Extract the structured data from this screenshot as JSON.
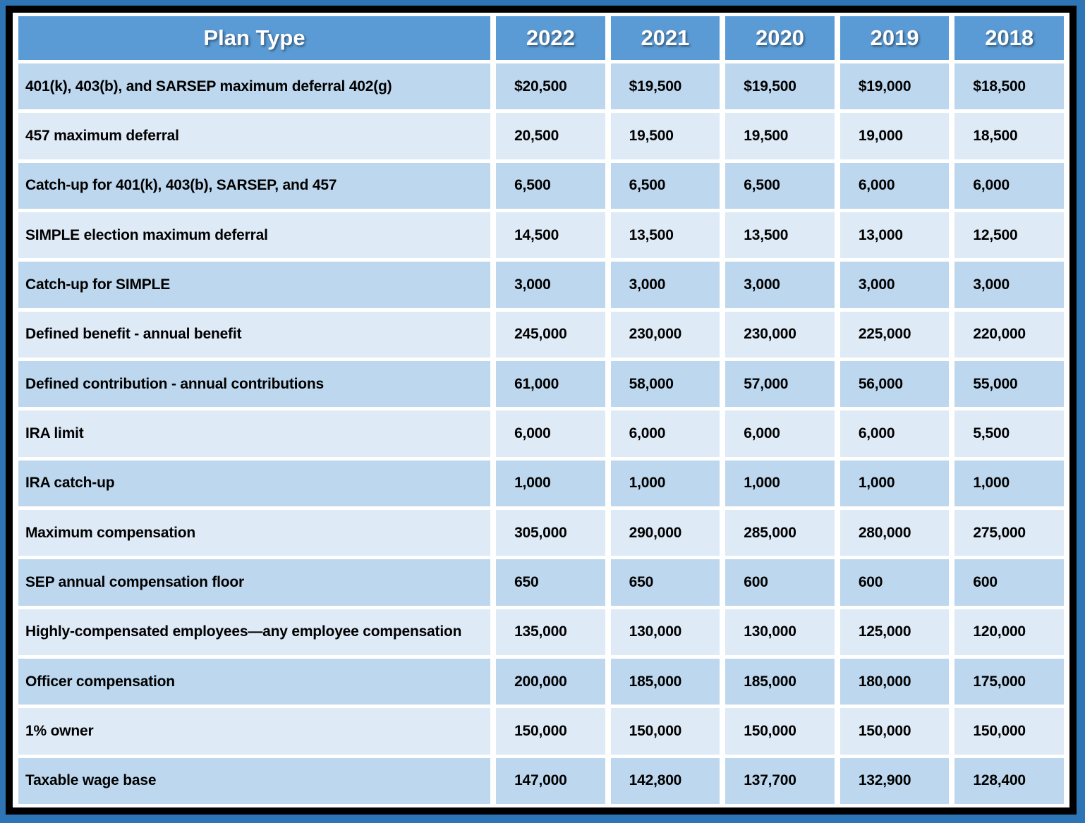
{
  "colors": {
    "outer_border_blue": "#2E75B6",
    "frame_black": "#000000",
    "gridline_white": "#FFFFFF",
    "header_fill": "#5B9BD5",
    "row_alt_dark": "#BDD7EE",
    "row_alt_light": "#DEEAF6",
    "header_text": "#FFFFFF",
    "body_text": "#000000"
  },
  "chart_data": {
    "type": "table",
    "columns": [
      "Plan Type",
      "2022",
      "2021",
      "2020",
      "2019",
      "2018"
    ],
    "rows": [
      {
        "label": "401(k), 403(b), and SARSEP maximum deferral 402(g)",
        "values": [
          "$20,500",
          "$19,500",
          "$19,500",
          "$19,000",
          "$18,500"
        ]
      },
      {
        "label": "457 maximum deferral",
        "values": [
          "20,500",
          "19,500",
          "19,500",
          "19,000",
          "18,500"
        ]
      },
      {
        "label": "Catch-up for 401(k), 403(b), SARSEP, and 457",
        "values": [
          "6,500",
          "6,500",
          "6,500",
          "6,000",
          "6,000"
        ]
      },
      {
        "label": "SIMPLE election maximum deferral",
        "values": [
          "14,500",
          "13,500",
          "13,500",
          "13,000",
          "12,500"
        ]
      },
      {
        "label": "Catch-up for SIMPLE",
        "values": [
          "3,000",
          "3,000",
          "3,000",
          "3,000",
          "3,000"
        ]
      },
      {
        "label": "Defined benefit - annual benefit",
        "values": [
          "245,000",
          "230,000",
          "230,000",
          "225,000",
          "220,000"
        ]
      },
      {
        "label": "Defined contribution - annual contributions",
        "values": [
          "61,000",
          "58,000",
          "57,000",
          "56,000",
          "55,000"
        ]
      },
      {
        "label": "IRA limit",
        "values": [
          "6,000",
          "6,000",
          "6,000",
          "6,000",
          "5,500"
        ]
      },
      {
        "label": "IRA catch-up",
        "values": [
          "1,000",
          "1,000",
          "1,000",
          "1,000",
          "1,000"
        ]
      },
      {
        "label": "Maximum compensation",
        "values": [
          "305,000",
          "290,000",
          "285,000",
          "280,000",
          "275,000"
        ]
      },
      {
        "label": "SEP annual compensation floor",
        "values": [
          "650",
          "650",
          "600",
          "600",
          "600"
        ]
      },
      {
        "label": "Highly-compensated employees—any employee compensation",
        "values": [
          "135,000",
          "130,000",
          "130,000",
          "125,000",
          "120,000"
        ]
      },
      {
        "label": "Officer compensation",
        "values": [
          "200,000",
          "185,000",
          "185,000",
          "180,000",
          "175,000"
        ]
      },
      {
        "label": "1% owner",
        "values": [
          "150,000",
          "150,000",
          "150,000",
          "150,000",
          "150,000"
        ]
      },
      {
        "label": "Taxable wage base",
        "values": [
          "147,000",
          "142,800",
          "137,700",
          "132,900",
          "128,400"
        ]
      }
    ]
  }
}
